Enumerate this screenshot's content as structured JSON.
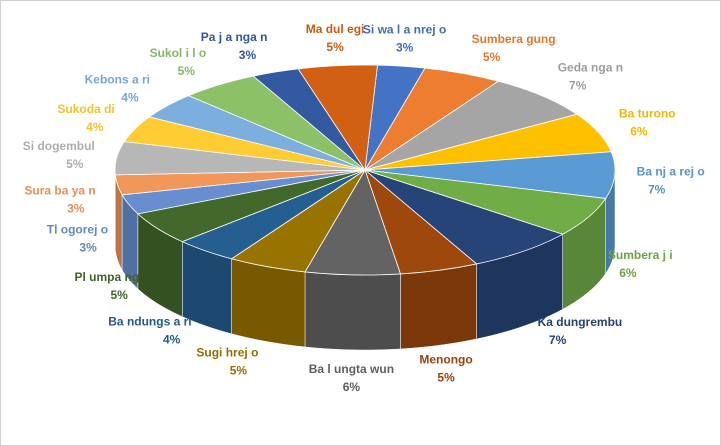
{
  "chart_data": {
    "type": "pie",
    "categories": [
      "Si wa l a nrej o",
      "Sumbera gung",
      "Geda nga n",
      "Ba turono",
      "Ba nj a rej o",
      "Sumbera j i",
      "Ka dungrembu",
      "Menongo",
      "Ba l ungta wun",
      "Sugi hrej o",
      "Ba ndungs a ri",
      "Pl umpa ng",
      "Tl ogorej o",
      "Sura ba ya n",
      "Si dogembul",
      "Sukoda di",
      "Kebons a ri",
      "Sukol i l o",
      "Pa j a nga n",
      "Ma dul egi"
    ],
    "values": [
      3,
      5,
      7,
      6,
      7,
      6,
      7,
      5,
      6,
      5,
      4,
      5,
      3,
      3,
      5,
      4,
      4,
      5,
      3,
      5
    ],
    "value_labels": [
      "3%",
      "5%",
      "7%",
      "6%",
      "7%",
      "6%",
      "7%",
      "5%",
      "6%",
      "5%",
      "4%",
      "5%",
      "3%",
      "3%",
      "5%",
      "4%",
      "4%",
      "5%",
      "3%",
      "5%"
    ],
    "colors": [
      "#4472C4",
      "#ED7D31",
      "#A5A5A5",
      "#FFC000",
      "#5B9BD5",
      "#70AD47",
      "#264478",
      "#9E480E",
      "#636363",
      "#997300",
      "#255E91",
      "#43682B",
      "#698ED0",
      "#F1975A",
      "#B7B7B7",
      "#FFCD33",
      "#7CAFDD",
      "#8CC168",
      "#335AA1",
      "#D26012"
    ]
  }
}
